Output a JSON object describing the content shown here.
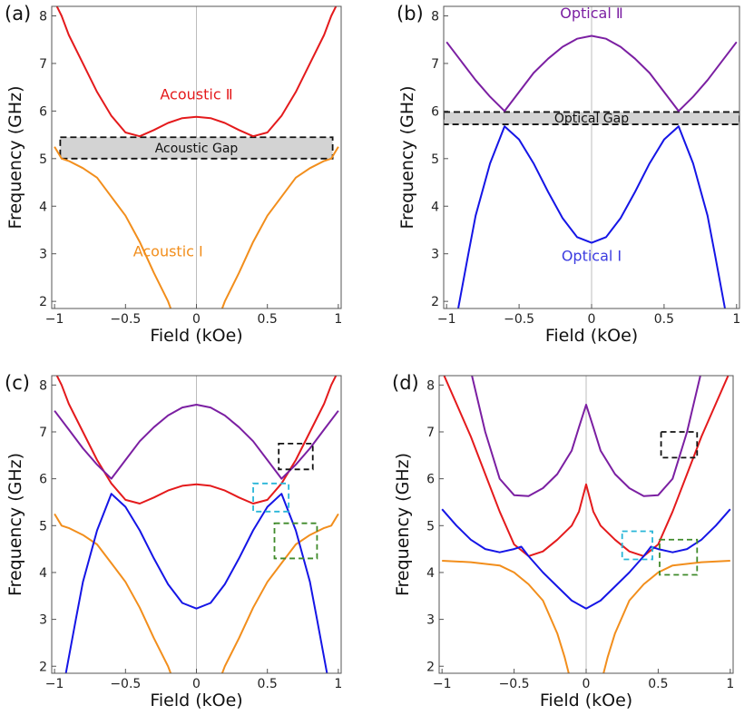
{
  "chart_data": [
    {
      "label": "(a)",
      "type": "line",
      "xlabel": "Field (kOe)",
      "ylabel": "Frequency (GHz)",
      "xlim": [
        -1.02,
        1.02
      ],
      "ylim": [
        1.85,
        8.2
      ],
      "xticks": [
        -1,
        -0.5,
        0,
        0.5,
        1
      ],
      "xtick_labels": [
        "−1",
        "−0.5",
        "0",
        "0.5",
        "1"
      ],
      "yticks": [
        2,
        3,
        4,
        5,
        6,
        7,
        8
      ],
      "ytick_labels": [
        "2",
        "3",
        "4",
        "5",
        "6",
        "7",
        "8"
      ],
      "series": [
        {
          "name": "Acoustic II",
          "color": "#e41a1c",
          "x": [
            -1,
            -0.95,
            -0.9,
            -0.8,
            -0.7,
            -0.6,
            -0.5,
            -0.4,
            -0.3,
            -0.2,
            -0.1,
            0,
            0.1,
            0.2,
            0.3,
            0.4,
            0.5,
            0.6,
            0.7,
            0.8,
            0.9,
            0.95,
            1
          ],
          "values": [
            8.3,
            8.0,
            7.6,
            7.0,
            6.4,
            5.9,
            5.55,
            5.47,
            5.6,
            5.75,
            5.85,
            5.88,
            5.85,
            5.75,
            5.6,
            5.47,
            5.55,
            5.9,
            6.4,
            7.0,
            7.6,
            8.0,
            8.3
          ]
        },
        {
          "name": "Acoustic I",
          "color": "#f28e1c",
          "x": [
            -1,
            -0.95,
            -0.9,
            -0.8,
            -0.7,
            -0.6,
            -0.5,
            -0.4,
            -0.3,
            -0.2,
            -0.15,
            null,
            0.15,
            0.2,
            0.3,
            0.4,
            0.5,
            0.6,
            0.7,
            0.8,
            0.9,
            0.95,
            1
          ],
          "values": [
            5.25,
            5.0,
            4.95,
            4.8,
            4.6,
            4.2,
            3.8,
            3.25,
            2.6,
            2.0,
            1.6,
            null,
            1.6,
            2.0,
            2.6,
            3.25,
            3.8,
            4.2,
            4.6,
            4.8,
            4.95,
            5.0,
            5.25
          ]
        }
      ],
      "annotations": [
        {
          "text": "Acoustic Ⅱ",
          "x": 0,
          "y": 6.25,
          "color": "#e41a1c"
        },
        {
          "text": "Acoustic Ⅰ",
          "x": -0.2,
          "y": 2.95,
          "color": "#f28e1c"
        }
      ],
      "gap_box": {
        "text": "Acoustic Gap",
        "x": [
          -0.96,
          0.96
        ],
        "y": [
          5.0,
          5.45
        ],
        "color": "#d3d3d3"
      },
      "dashed_boxes": []
    },
    {
      "label": "(b)",
      "type": "line",
      "xlabel": "Field (kOe)",
      "ylabel": "Frequency (GHz)",
      "xlim": [
        -1.02,
        1.02
      ],
      "ylim": [
        1.85,
        8.2
      ],
      "xticks": [
        -1,
        -0.5,
        0,
        0.5,
        1
      ],
      "xtick_labels": [
        "−1",
        "−0.5",
        "0",
        "0.5",
        "1"
      ],
      "yticks": [
        2,
        3,
        4,
        5,
        6,
        7,
        8
      ],
      "ytick_labels": [
        "2",
        "3",
        "4",
        "5",
        "6",
        "7",
        "8"
      ],
      "series": [
        {
          "name": "Optical II",
          "color": "#7b1fa2",
          "x": [
            -1,
            -0.9,
            -0.8,
            -0.7,
            -0.6,
            -0.5,
            -0.4,
            -0.3,
            -0.2,
            -0.1,
            0,
            0.1,
            0.2,
            0.3,
            0.4,
            0.5,
            0.6,
            0.7,
            0.8,
            0.9,
            1
          ],
          "values": [
            7.45,
            7.05,
            6.65,
            6.3,
            6.0,
            6.4,
            6.8,
            7.1,
            7.35,
            7.52,
            7.58,
            7.52,
            7.35,
            7.1,
            6.8,
            6.4,
            6.0,
            6.3,
            6.65,
            7.05,
            7.45
          ]
        },
        {
          "name": "Optical I",
          "color": "#1515e6",
          "x": [
            -0.92,
            -0.85,
            -0.8,
            -0.7,
            -0.6,
            -0.5,
            -0.4,
            -0.3,
            -0.2,
            -0.1,
            0,
            0.1,
            0.2,
            0.3,
            0.4,
            0.5,
            0.6,
            0.7,
            0.8,
            0.85,
            0.92
          ],
          "values": [
            1.85,
            3.0,
            3.8,
            4.9,
            5.68,
            5.4,
            4.9,
            4.3,
            3.75,
            3.35,
            3.23,
            3.35,
            3.75,
            4.3,
            4.9,
            5.4,
            5.68,
            4.9,
            3.8,
            3.0,
            1.85
          ]
        }
      ],
      "annotations": [
        {
          "text": "Optical Ⅱ",
          "x": 0,
          "y": 7.95,
          "color": "#7b1fa2"
        },
        {
          "text": "Optical Ⅰ",
          "x": 0,
          "y": 2.85,
          "color": "#3b3be0"
        }
      ],
      "gap_box": {
        "text": "Optical Gap",
        "x": [
          -1.02,
          1.02
        ],
        "y": [
          5.72,
          5.98
        ],
        "color": "#d3d3d3"
      },
      "dashed_boxes": []
    },
    {
      "label": "(c)",
      "type": "line",
      "xlabel": "Field (kOe)",
      "ylabel": "Frequency (GHz)",
      "xlim": [
        -1.02,
        1.02
      ],
      "ylim": [
        1.85,
        8.2
      ],
      "xticks": [
        -1,
        -0.5,
        0,
        0.5,
        1
      ],
      "xtick_labels": [
        "−1",
        "−0.5",
        "0",
        "0.5",
        "1"
      ],
      "yticks": [
        2,
        3,
        4,
        5,
        6,
        7,
        8
      ],
      "ytick_labels": [
        "2",
        "3",
        "4",
        "5",
        "6",
        "7",
        "8"
      ],
      "series": [
        {
          "name": "Acoustic II",
          "color": "#e41a1c",
          "x": [
            -1,
            -0.95,
            -0.9,
            -0.8,
            -0.7,
            -0.6,
            -0.5,
            -0.4,
            -0.3,
            -0.2,
            -0.1,
            0,
            0.1,
            0.2,
            0.3,
            0.4,
            0.5,
            0.6,
            0.7,
            0.8,
            0.9,
            0.95,
            1
          ],
          "values": [
            8.3,
            8.0,
            7.6,
            7.0,
            6.4,
            5.9,
            5.55,
            5.47,
            5.6,
            5.75,
            5.85,
            5.88,
            5.85,
            5.75,
            5.6,
            5.47,
            5.55,
            5.9,
            6.4,
            7.0,
            7.6,
            8.0,
            8.3
          ]
        },
        {
          "name": "Acoustic I",
          "color": "#f28e1c",
          "x": [
            -1,
            -0.95,
            -0.9,
            -0.8,
            -0.7,
            -0.6,
            -0.5,
            -0.4,
            -0.3,
            -0.2,
            -0.15,
            null,
            0.15,
            0.2,
            0.3,
            0.4,
            0.5,
            0.6,
            0.7,
            0.8,
            0.9,
            0.95,
            1
          ],
          "values": [
            5.25,
            5.0,
            4.95,
            4.8,
            4.6,
            4.2,
            3.8,
            3.25,
            2.6,
            2.0,
            1.6,
            null,
            1.6,
            2.0,
            2.6,
            3.25,
            3.8,
            4.2,
            4.6,
            4.8,
            4.95,
            5.0,
            5.25
          ]
        },
        {
          "name": "Optical II",
          "color": "#7b1fa2",
          "x": [
            -1,
            -0.9,
            -0.8,
            -0.7,
            -0.6,
            -0.5,
            -0.4,
            -0.3,
            -0.2,
            -0.1,
            0,
            0.1,
            0.2,
            0.3,
            0.4,
            0.5,
            0.6,
            0.7,
            0.8,
            0.9,
            1
          ],
          "values": [
            7.45,
            7.05,
            6.65,
            6.3,
            6.0,
            6.4,
            6.8,
            7.1,
            7.35,
            7.52,
            7.58,
            7.52,
            7.35,
            7.1,
            6.8,
            6.4,
            6.0,
            6.3,
            6.65,
            7.05,
            7.45
          ]
        },
        {
          "name": "Optical I",
          "color": "#1515e6",
          "x": [
            -0.92,
            -0.85,
            -0.8,
            -0.7,
            -0.6,
            -0.5,
            -0.4,
            -0.3,
            -0.2,
            -0.1,
            0,
            0.1,
            0.2,
            0.3,
            0.4,
            0.5,
            0.6,
            0.7,
            0.8,
            0.85,
            0.92
          ],
          "values": [
            1.85,
            3.0,
            3.8,
            4.9,
            5.68,
            5.4,
            4.9,
            4.3,
            3.75,
            3.35,
            3.23,
            3.35,
            3.75,
            4.3,
            4.9,
            5.4,
            5.68,
            4.9,
            3.8,
            3.0,
            1.85
          ]
        }
      ],
      "annotations": [],
      "gap_box": null,
      "dashed_boxes": [
        {
          "x": [
            0.58,
            0.82
          ],
          "y": [
            6.2,
            6.75
          ],
          "color": "#111111"
        },
        {
          "x": [
            0.4,
            0.65
          ],
          "y": [
            5.3,
            5.9
          ],
          "color": "#29b6d8"
        },
        {
          "x": [
            0.55,
            0.85
          ],
          "y": [
            4.3,
            5.05
          ],
          "color": "#3f8a2a"
        }
      ]
    },
    {
      "label": "(d)",
      "type": "line",
      "xlabel": "Field (kOe)",
      "ylabel": "Frequency (GHz)",
      "xlim": [
        -1.02,
        1.02
      ],
      "ylim": [
        1.85,
        8.2
      ],
      "xticks": [
        -1,
        -0.5,
        0,
        0.5,
        1
      ],
      "xtick_labels": [
        "−1",
        "−0.5",
        "0",
        "0.5",
        "1"
      ],
      "yticks": [
        2,
        3,
        4,
        5,
        6,
        7,
        8
      ],
      "ytick_labels": [
        "2",
        "3",
        "4",
        "5",
        "6",
        "7",
        "8"
      ],
      "series": [
        {
          "name": "Optical II",
          "color": "#7b1fa2",
          "x": [
            -0.8,
            -0.7,
            -0.6,
            -0.5,
            -0.4,
            -0.3,
            -0.2,
            -0.1,
            -0.05,
            0,
            0.05,
            0.1,
            0.2,
            0.3,
            0.4,
            0.5,
            0.6,
            0.7,
            0.8
          ],
          "values": [
            8.3,
            7.0,
            6.0,
            5.65,
            5.63,
            5.8,
            6.1,
            6.6,
            7.1,
            7.58,
            7.1,
            6.6,
            6.1,
            5.8,
            5.63,
            5.65,
            6.0,
            7.0,
            8.3
          ]
        },
        {
          "name": "Acoustic II",
          "color": "#e41a1c",
          "x": [
            -1,
            -0.9,
            -0.8,
            -0.7,
            -0.6,
            -0.5,
            -0.4,
            -0.3,
            -0.2,
            -0.1,
            -0.05,
            0,
            0.05,
            0.1,
            0.2,
            0.3,
            0.4,
            0.5,
            0.6,
            0.7,
            0.8,
            0.9,
            1
          ],
          "values": [
            8.3,
            7.6,
            6.9,
            6.1,
            5.3,
            4.6,
            4.35,
            4.45,
            4.7,
            5.0,
            5.3,
            5.88,
            5.3,
            5.0,
            4.7,
            4.45,
            4.35,
            4.6,
            5.3,
            6.1,
            6.9,
            7.6,
            8.3
          ]
        },
        {
          "name": "Optical I",
          "color": "#1515e6",
          "x": [
            -1,
            -0.9,
            -0.8,
            -0.7,
            -0.6,
            -0.5,
            -0.45,
            -0.4,
            -0.3,
            -0.2,
            -0.1,
            0,
            0.1,
            0.2,
            0.3,
            0.4,
            0.45,
            0.5,
            0.6,
            0.7,
            0.8,
            0.9,
            1
          ],
          "values": [
            5.35,
            5.0,
            4.7,
            4.5,
            4.43,
            4.5,
            4.55,
            4.35,
            4.0,
            3.7,
            3.4,
            3.23,
            3.4,
            3.7,
            4.0,
            4.35,
            4.55,
            4.5,
            4.43,
            4.5,
            4.7,
            5.0,
            5.35
          ]
        },
        {
          "name": "Acoustic I",
          "color": "#f28e1c",
          "x": [
            -1,
            -0.8,
            -0.6,
            -0.5,
            -0.4,
            -0.3,
            -0.2,
            -0.15,
            -0.1,
            null,
            0.1,
            0.15,
            0.2,
            0.3,
            0.4,
            0.5,
            0.6,
            0.8,
            1
          ],
          "values": [
            4.25,
            4.22,
            4.15,
            4.0,
            3.75,
            3.4,
            2.7,
            2.2,
            1.6,
            null,
            1.6,
            2.2,
            2.7,
            3.4,
            3.75,
            4.0,
            4.15,
            4.22,
            4.25
          ]
        }
      ],
      "annotations": [],
      "gap_box": null,
      "dashed_boxes": [
        {
          "x": [
            0.52,
            0.77
          ],
          "y": [
            6.45,
            7.0
          ],
          "color": "#111111"
        },
        {
          "x": [
            0.25,
            0.46
          ],
          "y": [
            4.28,
            4.88
          ],
          "color": "#29b6d8"
        },
        {
          "x": [
            0.51,
            0.77
          ],
          "y": [
            3.95,
            4.7
          ],
          "color": "#3f8a2a"
        }
      ]
    }
  ]
}
